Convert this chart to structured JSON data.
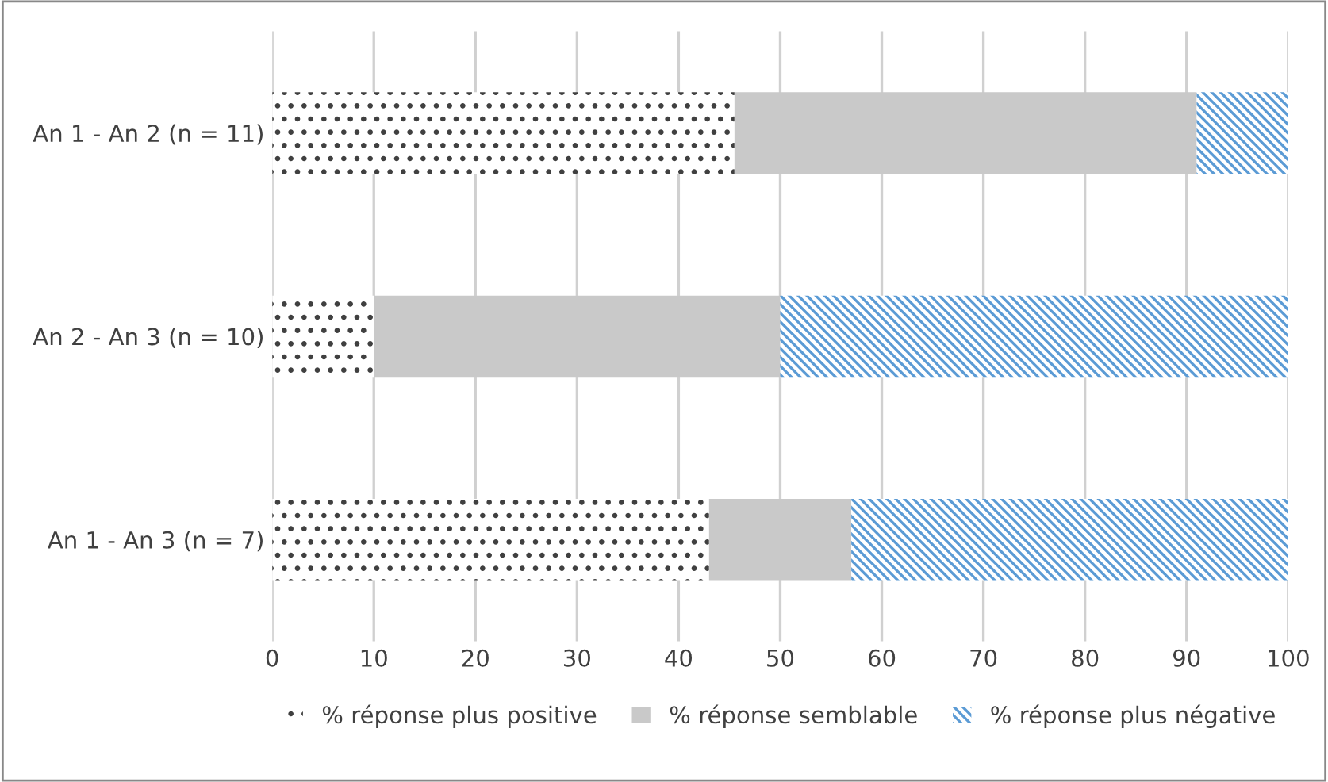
{
  "chart_data": {
    "type": "bar",
    "orientation": "horizontal",
    "stacked": true,
    "categories": [
      "An 1 - An 2 (n = 11)",
      "An 2 - An 3 (n = 10)",
      "An 1 - An 3 (n = 7)"
    ],
    "series": [
      {
        "name": "% réponse plus positive",
        "color": "#404040",
        "values": [
          45.5,
          10,
          43
        ]
      },
      {
        "name": "% réponse semblable",
        "color": "#c9c9c9",
        "values": [
          45.5,
          40,
          14
        ]
      },
      {
        "name": "% réponse plus négative",
        "color": "#5b9bd5",
        "values": [
          9,
          50,
          43
        ]
      }
    ],
    "xlim": [
      0,
      100
    ],
    "xticks": [
      0,
      10,
      20,
      30,
      40,
      50,
      60,
      70,
      80,
      90,
      100
    ],
    "grid": "x",
    "legend": "bottom"
  }
}
